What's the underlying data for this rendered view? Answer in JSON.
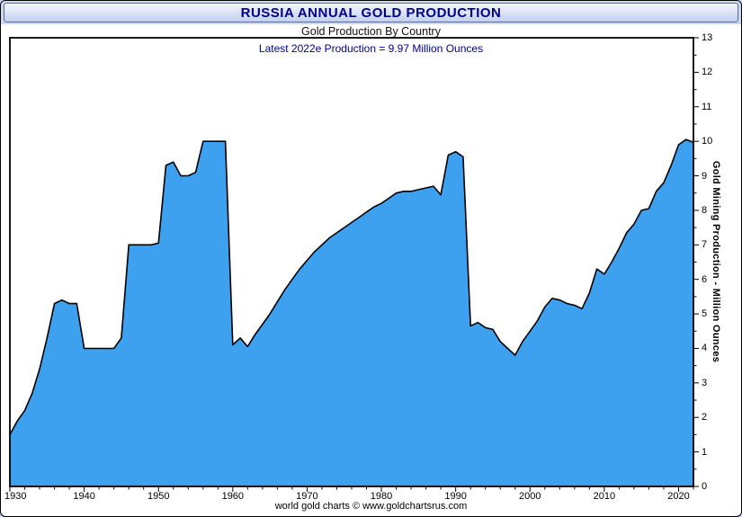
{
  "page": {
    "title": "RUSSIA ANNUAL GOLD PRODUCTION",
    "footer": "world gold charts © www.goldchartsrus.com"
  },
  "chart_data": {
    "type": "area",
    "title": "RUSSIA ANNUAL GOLD PRODUCTION",
    "subtitle": "Gold Production By Country",
    "annotation": "Latest 2022e Production = 9.97 Million Ounces",
    "ylabel": "Gold Mining Production - Million Ounces",
    "xlabel": "",
    "latest_year": "2022e",
    "latest_value": 9.97,
    "xlim": [
      1930,
      2022
    ],
    "ylim": [
      0,
      13
    ],
    "yticks": [
      0,
      1,
      2,
      3,
      4,
      5,
      6,
      7,
      8,
      9,
      10,
      11,
      12,
      13
    ],
    "xticks": [
      1930,
      1940,
      1950,
      1960,
      1970,
      1980,
      1990,
      2000,
      2010,
      2020
    ],
    "grid": false,
    "legend": false,
    "fill_color": "#3EA1F0",
    "line_color": "#000000",
    "years": [
      1930,
      1931,
      1932,
      1933,
      1934,
      1935,
      1936,
      1937,
      1938,
      1939,
      1940,
      1941,
      1942,
      1943,
      1944,
      1945,
      1946,
      1947,
      1948,
      1949,
      1950,
      1951,
      1952,
      1953,
      1954,
      1955,
      1956,
      1957,
      1958,
      1959,
      1960,
      1961,
      1962,
      1963,
      1964,
      1965,
      1966,
      1967,
      1968,
      1969,
      1970,
      1971,
      1972,
      1973,
      1974,
      1975,
      1976,
      1977,
      1978,
      1979,
      1980,
      1981,
      1982,
      1983,
      1984,
      1985,
      1986,
      1987,
      1988,
      1989,
      1990,
      1991,
      1992,
      1993,
      1994,
      1995,
      1996,
      1997,
      1998,
      1999,
      2000,
      2001,
      2002,
      2003,
      2004,
      2005,
      2006,
      2007,
      2008,
      2009,
      2010,
      2011,
      2012,
      2013,
      2014,
      2015,
      2016,
      2017,
      2018,
      2019,
      2020,
      2021,
      2022
    ],
    "values": [
      1.5,
      1.9,
      2.2,
      2.7,
      3.4,
      4.3,
      5.3,
      5.4,
      5.3,
      5.3,
      4.0,
      4.0,
      4.0,
      4.0,
      4.0,
      4.3,
      7.0,
      7.0,
      7.0,
      7.0,
      7.05,
      9.3,
      9.4,
      9.0,
      9.0,
      9.1,
      10.0,
      10.0,
      10.0,
      10.0,
      4.1,
      4.3,
      4.05,
      4.4,
      4.7,
      5.0,
      5.35,
      5.7,
      6.0,
      6.3,
      6.55,
      6.8,
      7.0,
      7.2,
      7.35,
      7.5,
      7.65,
      7.8,
      7.95,
      8.1,
      8.2,
      8.35,
      8.5,
      8.55,
      8.55,
      8.6,
      8.65,
      8.7,
      8.45,
      9.6,
      9.7,
      9.55,
      4.65,
      4.75,
      4.6,
      4.55,
      4.2,
      4.0,
      3.8,
      4.2,
      4.5,
      4.8,
      5.2,
      5.45,
      5.4,
      5.3,
      5.25,
      5.15,
      5.6,
      6.3,
      6.15,
      6.5,
      6.9,
      7.35,
      7.6,
      8.0,
      8.05,
      8.55,
      8.8,
      9.3,
      9.9,
      10.05,
      9.97
    ]
  }
}
